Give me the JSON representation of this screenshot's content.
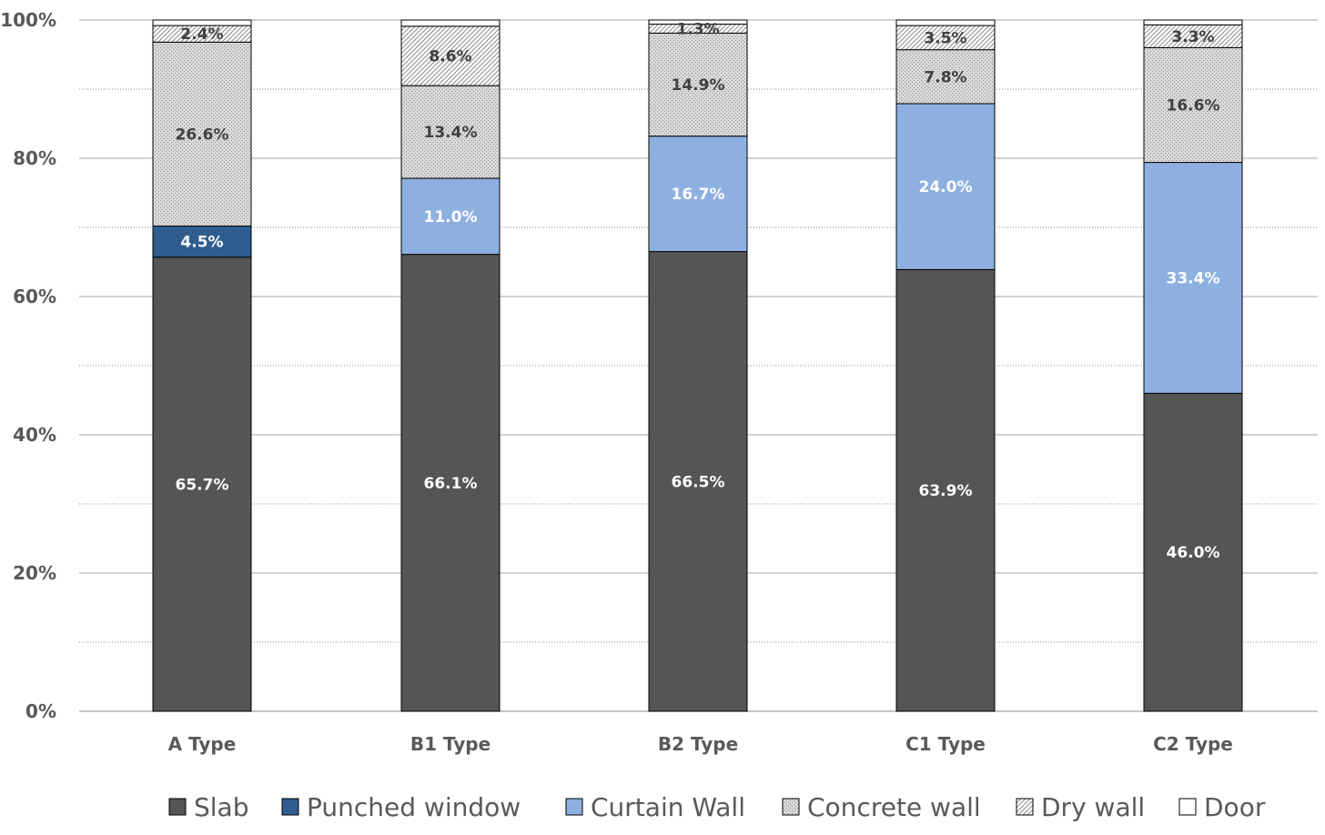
{
  "chart_data": {
    "type": "bar",
    "stacked": true,
    "percent_stacked": true,
    "categories": [
      "A Type",
      "B1 Type",
      "B2 Type",
      "C1 Type",
      "C2 Type"
    ],
    "series": [
      {
        "name": "Slab",
        "values": [
          65.7,
          66.1,
          66.5,
          63.9,
          46.0
        ],
        "labels": [
          "65.7%",
          "66.1%",
          "66.5%",
          "63.9%",
          "46.0%"
        ],
        "color": "#555555",
        "pattern": "solid",
        "label_color": "#ffffff"
      },
      {
        "name": "Punched window",
        "values": [
          4.5,
          0,
          0,
          0,
          0
        ],
        "labels": [
          "4.5%",
          "",
          "",
          "",
          ""
        ],
        "color": "#2f5d8f",
        "pattern": "solid",
        "label_color": "#ffffff"
      },
      {
        "name": "Curtain Wall",
        "values": [
          0,
          11.0,
          16.7,
          24.0,
          33.4
        ],
        "labels": [
          "",
          "11.0%",
          "16.7%",
          "24.0%",
          "33.4%"
        ],
        "color": "#8db0e0",
        "pattern": "solid",
        "label_color": "#ffffff"
      },
      {
        "name": "Concrete wall",
        "values": [
          26.6,
          13.4,
          14.9,
          7.8,
          16.6
        ],
        "labels": [
          "26.6%",
          "13.4%",
          "14.9%",
          "7.8%",
          "16.6%"
        ],
        "color": "#d9d9d9",
        "pattern": "dots",
        "label_color": "#404040"
      },
      {
        "name": "Dry wall",
        "values": [
          2.4,
          8.6,
          1.3,
          3.5,
          3.3
        ],
        "labels": [
          "2.4%",
          "8.6%",
          "1.3%",
          "3.5%",
          "3.3%"
        ],
        "color": "#ffffff",
        "pattern": "hatch",
        "label_color": "#404040"
      },
      {
        "name": "Door",
        "values": [
          0.8,
          0.9,
          0.6,
          0.8,
          0.7
        ],
        "labels": [
          "",
          "",
          "",
          "",
          ""
        ],
        "color": "#ffffff",
        "pattern": "solid",
        "label_color": "#404040"
      }
    ],
    "ylim": [
      0,
      100
    ],
    "yticks": [
      "0%",
      "20%",
      "40%",
      "60%",
      "80%",
      "100%"
    ],
    "ytick_values": [
      0,
      20,
      40,
      60,
      80,
      100
    ],
    "minor_gridlines": [
      10,
      30,
      50,
      70,
      90
    ],
    "grid": true,
    "legend_position": "bottom",
    "title": "",
    "xlabel": "",
    "ylabel": ""
  }
}
